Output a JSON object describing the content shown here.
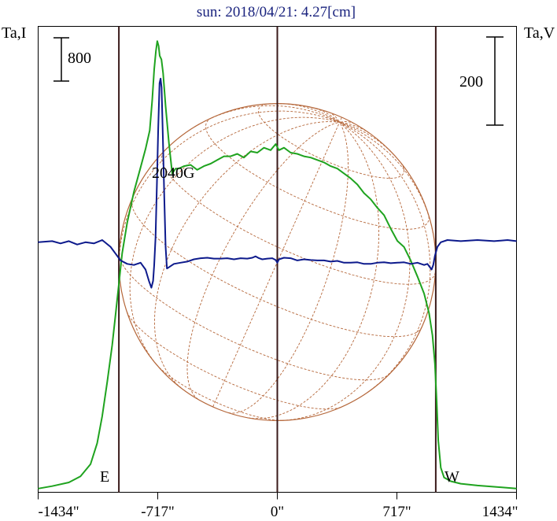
{
  "chart_data": {
    "type": "line",
    "title": "sun: 2018/04/21: 4.27[cm]",
    "ylabel_left": "Ta,I",
    "ylabel_right": "Ta,V",
    "scale_left_label": "800",
    "scale_right_label": "200",
    "annotation": "2040G",
    "east_label": "E",
    "west_label": "W",
    "xlim": [
      -1434,
      1434
    ],
    "x_ticks": [
      {
        "value": -1434,
        "label": "-1434\""
      },
      {
        "value": -717,
        "label": "-717\""
      },
      {
        "value": 0,
        "label": "0\""
      },
      {
        "value": 717,
        "label": "717\""
      },
      {
        "value": 1434,
        "label": "1434\""
      }
    ],
    "vertical_markers": [
      -950,
      0,
      950
    ],
    "solar_radius_arcsec": 950,
    "grid": false,
    "colors": {
      "title": "#1a237e",
      "intensity": "#1fa31f",
      "polarization": "#0d1a8c",
      "disk": "#b5673a",
      "markers": "#3a1a1a"
    },
    "series": [
      {
        "name": "I",
        "ylim": [
          0,
          3800
        ],
        "points": [
          [
            -1434,
            30
          ],
          [
            -1350,
            50
          ],
          [
            -1250,
            80
          ],
          [
            -1180,
            130
          ],
          [
            -1120,
            230
          ],
          [
            -1080,
            400
          ],
          [
            -1050,
            620
          ],
          [
            -1020,
            900
          ],
          [
            -990,
            1200
          ],
          [
            -970,
            1450
          ],
          [
            -950,
            1700
          ],
          [
            -930,
            1950
          ],
          [
            -900,
            2200
          ],
          [
            -860,
            2450
          ],
          [
            -820,
            2650
          ],
          [
            -790,
            2800
          ],
          [
            -765,
            2950
          ],
          [
            -750,
            3200
          ],
          [
            -738,
            3450
          ],
          [
            -728,
            3600
          ],
          [
            -720,
            3680
          ],
          [
            -712,
            3640
          ],
          [
            -705,
            3560
          ],
          [
            -695,
            3530
          ],
          [
            -685,
            3420
          ],
          [
            -670,
            3150
          ],
          [
            -650,
            2850
          ],
          [
            -630,
            2600
          ],
          [
            -610,
            2640
          ],
          [
            -590,
            2640
          ],
          [
            -560,
            2660
          ],
          [
            -520,
            2670
          ],
          [
            -480,
            2630
          ],
          [
            -440,
            2660
          ],
          [
            -400,
            2680
          ],
          [
            -360,
            2710
          ],
          [
            -320,
            2740
          ],
          [
            -280,
            2740
          ],
          [
            -240,
            2760
          ],
          [
            -200,
            2730
          ],
          [
            -160,
            2780
          ],
          [
            -120,
            2770
          ],
          [
            -80,
            2810
          ],
          [
            -40,
            2790
          ],
          [
            -10,
            2840
          ],
          [
            10,
            2790
          ],
          [
            40,
            2810
          ],
          [
            80,
            2770
          ],
          [
            120,
            2760
          ],
          [
            160,
            2740
          ],
          [
            200,
            2730
          ],
          [
            240,
            2710
          ],
          [
            280,
            2690
          ],
          [
            320,
            2660
          ],
          [
            360,
            2640
          ],
          [
            400,
            2600
          ],
          [
            440,
            2560
          ],
          [
            480,
            2510
          ],
          [
            520,
            2440
          ],
          [
            560,
            2390
          ],
          [
            600,
            2320
          ],
          [
            640,
            2260
          ],
          [
            680,
            2150
          ],
          [
            720,
            2050
          ],
          [
            760,
            2000
          ],
          [
            800,
            1890
          ],
          [
            840,
            1760
          ],
          [
            880,
            1620
          ],
          [
            910,
            1460
          ],
          [
            930,
            1280
          ],
          [
            945,
            1050
          ],
          [
            955,
            750
          ],
          [
            965,
            420
          ],
          [
            980,
            200
          ],
          [
            1000,
            120
          ],
          [
            1040,
            90
          ],
          [
            1100,
            70
          ],
          [
            1200,
            55
          ],
          [
            1300,
            45
          ],
          [
            1434,
            30
          ]
        ]
      },
      {
        "name": "V",
        "ylim": [
          -1100,
          950
        ],
        "points": [
          [
            -1434,
            0
          ],
          [
            -1350,
            5
          ],
          [
            -1300,
            -5
          ],
          [
            -1250,
            5
          ],
          [
            -1200,
            -10
          ],
          [
            -1150,
            0
          ],
          [
            -1100,
            -5
          ],
          [
            -1050,
            10
          ],
          [
            -1000,
            -20
          ],
          [
            -970,
            -50
          ],
          [
            -940,
            -80
          ],
          [
            -900,
            -95
          ],
          [
            -860,
            -100
          ],
          [
            -820,
            -90
          ],
          [
            -790,
            -120
          ],
          [
            -770,
            -170
          ],
          [
            -755,
            -200
          ],
          [
            -745,
            -170
          ],
          [
            -738,
            -100
          ],
          [
            -730,
            20
          ],
          [
            -722,
            250
          ],
          [
            -714,
            500
          ],
          [
            -706,
            700
          ],
          [
            -700,
            720
          ],
          [
            -694,
            680
          ],
          [
            -686,
            450
          ],
          [
            -678,
            200
          ],
          [
            -670,
            -20
          ],
          [
            -662,
            -115
          ],
          [
            -650,
            -110
          ],
          [
            -620,
            -95
          ],
          [
            -580,
            -90
          ],
          [
            -540,
            -85
          ],
          [
            -500,
            -75
          ],
          [
            -460,
            -70
          ],
          [
            -420,
            -68
          ],
          [
            -380,
            -72
          ],
          [
            -340,
            -72
          ],
          [
            -300,
            -70
          ],
          [
            -260,
            -75
          ],
          [
            -220,
            -70
          ],
          [
            -180,
            -72
          ],
          [
            -150,
            -68
          ],
          [
            -130,
            -62
          ],
          [
            -110,
            -70
          ],
          [
            -90,
            -75
          ],
          [
            -60,
            -72
          ],
          [
            -30,
            -70
          ],
          [
            -10,
            -78
          ],
          [
            0,
            -90
          ],
          [
            10,
            -75
          ],
          [
            40,
            -68
          ],
          [
            80,
            -70
          ],
          [
            120,
            -80
          ],
          [
            160,
            -75
          ],
          [
            200,
            -78
          ],
          [
            240,
            -80
          ],
          [
            280,
            -80
          ],
          [
            320,
            -85
          ],
          [
            360,
            -82
          ],
          [
            400,
            -90
          ],
          [
            440,
            -90
          ],
          [
            480,
            -88
          ],
          [
            520,
            -95
          ],
          [
            560,
            -95
          ],
          [
            600,
            -90
          ],
          [
            640,
            -88
          ],
          [
            680,
            -92
          ],
          [
            720,
            -90
          ],
          [
            760,
            -88
          ],
          [
            800,
            -95
          ],
          [
            840,
            -90
          ],
          [
            880,
            -100
          ],
          [
            900,
            -95
          ],
          [
            915,
            -110
          ],
          [
            925,
            -120
          ],
          [
            935,
            -100
          ],
          [
            945,
            -60
          ],
          [
            960,
            -20
          ],
          [
            980,
            0
          ],
          [
            1020,
            10
          ],
          [
            1100,
            5
          ],
          [
            1200,
            10
          ],
          [
            1300,
            5
          ],
          [
            1380,
            10
          ],
          [
            1434,
            5
          ]
        ]
      }
    ]
  }
}
